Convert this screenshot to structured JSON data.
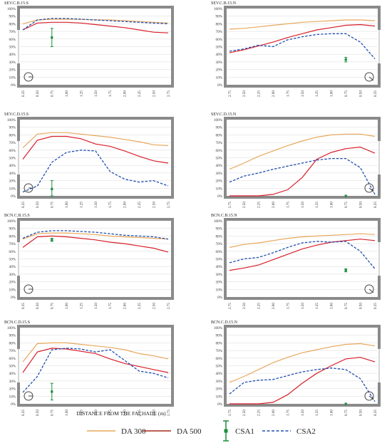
{
  "colors": {
    "da300": "#e8a85c",
    "da500": "#d81f2a",
    "da500_legend": "#a52a1f",
    "csa1": "#1a8f3c",
    "csa2": "#1f4fb0",
    "frame": "#8a8a8a",
    "grid": "#d8d8d8"
  },
  "figure": {
    "xlabel": "DISTANCE FROM THE FAÇHADE (m)"
  },
  "legend": {
    "items": [
      {
        "label": "DA 300",
        "key": "da300"
      },
      {
        "label": "DA 500",
        "key": "da500_legend"
      },
      {
        "label": "CSA1",
        "key": "csa1"
      },
      {
        "label": "CSA2",
        "key": "csa2"
      }
    ]
  },
  "chart_data": [
    {
      "type": "line",
      "title": "SEV.C.B.15.S",
      "categories": [
        "0.25",
        "0.50",
        "0.75",
        "1.00",
        "1.25",
        "1.50",
        "1.75",
        "2.00",
        "2.25",
        "2.50",
        "2.75"
      ],
      "yticks": [
        "0%",
        "10%",
        "20%",
        "30%",
        "40%",
        "50%",
        "60%",
        "70%",
        "80%",
        "90%",
        "100%"
      ],
      "ylim": [
        0,
        100
      ],
      "series": [
        {
          "name": "DA 300",
          "values": [
            80,
            85,
            86,
            86,
            86,
            85,
            85,
            84,
            83,
            82,
            81
          ]
        },
        {
          "name": "DA 500",
          "values": [
            72,
            81,
            82,
            82,
            81,
            79,
            77,
            75,
            72,
            69,
            68
          ]
        },
        {
          "name": "CSA2",
          "values": [
            72,
            85,
            87,
            87,
            86,
            85,
            84,
            83,
            82,
            81,
            80
          ]
        }
      ],
      "csa1": {
        "x": "0.75",
        "value": 62,
        "low": 50,
        "high": 74
      },
      "orientation": "S"
    },
    {
      "type": "line",
      "title": "SEV.C.B.15.N",
      "categories": [
        "2.75",
        "2.50",
        "2.25",
        "2.00",
        "1.75",
        "1.50",
        "1.25",
        "1.00",
        "0.75",
        "0.50",
        "0.25"
      ],
      "yticks": [
        "0%",
        "10%",
        "20%",
        "30%",
        "40%",
        "50%",
        "60%",
        "70%",
        "80%",
        "90%",
        "100%"
      ],
      "ylim": [
        0,
        100
      ],
      "series": [
        {
          "name": "DA 300",
          "values": [
            73,
            74,
            76,
            78,
            80,
            82,
            83,
            84,
            85,
            85,
            84
          ]
        },
        {
          "name": "DA 500",
          "values": [
            42,
            46,
            51,
            56,
            62,
            67,
            72,
            75,
            78,
            79,
            77
          ]
        },
        {
          "name": "CSA2",
          "values": [
            44,
            47,
            52,
            50,
            59,
            63,
            66,
            67,
            67,
            56,
            34
          ]
        }
      ],
      "csa1": {
        "x": "0.75",
        "value": 33,
        "low": 30,
        "high": 36
      },
      "orientation": "N"
    },
    {
      "type": "line",
      "title": "SEV.C.D.15.S",
      "categories": [
        "0.25",
        "0.50",
        "0.75",
        "1.00",
        "1.25",
        "1.50",
        "1.75",
        "2.00",
        "2.25",
        "2.50",
        "2.75"
      ],
      "yticks": [
        "0%",
        "10%",
        "20%",
        "30%",
        "40%",
        "50%",
        "60%",
        "70%",
        "80%",
        "90%",
        "100%"
      ],
      "ylim": [
        0,
        100
      ],
      "series": [
        {
          "name": "DA 300",
          "values": [
            63,
            81,
            83,
            83,
            81,
            79,
            77,
            74,
            71,
            67,
            66
          ]
        },
        {
          "name": "DA 500",
          "values": [
            48,
            73,
            78,
            78,
            75,
            68,
            65,
            59,
            52,
            46,
            43
          ]
        },
        {
          "name": "CSA2",
          "values": [
            5,
            13,
            44,
            57,
            60,
            59,
            32,
            22,
            18,
            20,
            13
          ]
        }
      ],
      "csa1": {
        "x": "0.75",
        "value": 9,
        "low": 0,
        "high": 20
      },
      "orientation": "S"
    },
    {
      "type": "line",
      "title": "SEV.C.D.15.N",
      "categories": [
        "2.75",
        "2.50",
        "2.25",
        "2.00",
        "1.75",
        "1.50",
        "1.25",
        "1.00",
        "0.75",
        "0.50",
        "0.25"
      ],
      "yticks": [
        "0%",
        "10%",
        "20%",
        "30%",
        "40%",
        "50%",
        "60%",
        "70%",
        "80%",
        "90%",
        "100%"
      ],
      "ylim": [
        0,
        100
      ],
      "series": [
        {
          "name": "DA 300",
          "values": [
            35,
            43,
            52,
            59,
            66,
            72,
            77,
            80,
            81,
            81,
            78
          ]
        },
        {
          "name": "DA 500",
          "values": [
            0,
            0,
            0,
            2,
            8,
            24,
            48,
            57,
            62,
            64,
            56
          ]
        },
        {
          "name": "CSA2",
          "values": [
            18,
            26,
            30,
            35,
            39,
            43,
            47,
            49,
            49,
            37,
            2
          ]
        }
      ],
      "csa1": {
        "x": "0.75",
        "value": 0,
        "low": 0,
        "high": 0
      },
      "orientation": "N"
    },
    {
      "type": "line",
      "title": "BCN.C.B.15.S",
      "categories": [
        "0.25",
        "0.50",
        "0.75",
        "1.00",
        "1.25",
        "1.50",
        "1.75",
        "2.00",
        "2.25",
        "2.50",
        "2.75"
      ],
      "yticks": [
        "0%",
        "10%",
        "20%",
        "30%",
        "40%",
        "50%",
        "60%",
        "70%",
        "80%",
        "90%",
        "100%"
      ],
      "ylim": [
        0,
        100
      ],
      "series": [
        {
          "name": "DA 300",
          "values": [
            76,
            83,
            84,
            84,
            83,
            82,
            80,
            79,
            78,
            77,
            76
          ]
        },
        {
          "name": "DA 500",
          "values": [
            65,
            79,
            80,
            79,
            77,
            75,
            72,
            70,
            67,
            64,
            59
          ]
        },
        {
          "name": "CSA2",
          "values": [
            77,
            85,
            87,
            87,
            86,
            85,
            83,
            81,
            80,
            79,
            76
          ]
        }
      ],
      "csa1": {
        "x": "0.75",
        "value": 75,
        "low": 73,
        "high": 77
      },
      "orientation": "S"
    },
    {
      "type": "line",
      "title": "BCN.C.B.15.N",
      "categories": [
        "2.75",
        "2.50",
        "2.25",
        "2.00",
        "1.75",
        "1.50",
        "1.25",
        "1.00",
        "0.75",
        "0.50",
        "0.25"
      ],
      "yticks": [
        "0%",
        "10%",
        "20%",
        "30%",
        "40%",
        "50%",
        "60%",
        "70%",
        "80%",
        "90%",
        "100%"
      ],
      "ylim": [
        0,
        100
      ],
      "series": [
        {
          "name": "DA 300",
          "values": [
            65,
            69,
            71,
            74,
            77,
            79,
            80,
            81,
            82,
            83,
            82
          ]
        },
        {
          "name": "DA 500",
          "values": [
            35,
            38,
            42,
            49,
            56,
            63,
            68,
            72,
            74,
            76,
            74
          ]
        },
        {
          "name": "CSA2",
          "values": [
            45,
            50,
            52,
            58,
            65,
            71,
            73,
            72,
            73,
            60,
            37
          ]
        }
      ],
      "csa1": {
        "x": "0.75",
        "value": 35,
        "low": 33,
        "high": 37
      },
      "orientation": "N"
    },
    {
      "type": "line",
      "title": "BCN.C.D.15.S",
      "categories": [
        "0.25",
        "0.50",
        "0.75",
        "1.00",
        "1.25",
        "1.50",
        "1.75",
        "2.00",
        "2.25",
        "2.50",
        "2.75"
      ],
      "yticks": [
        "0%",
        "10%",
        "20%",
        "30%",
        "40%",
        "50%",
        "60%",
        "70%",
        "80%",
        "90%",
        "100%"
      ],
      "ylim": [
        0,
        100
      ],
      "series": [
        {
          "name": "DA 300",
          "values": [
            55,
            79,
            80,
            80,
            78,
            76,
            74,
            71,
            66,
            63,
            59
          ]
        },
        {
          "name": "DA 500",
          "values": [
            41,
            68,
            73,
            72,
            69,
            66,
            59,
            53,
            49,
            45,
            41
          ]
        },
        {
          "name": "CSA2",
          "values": [
            15,
            36,
            71,
            73,
            72,
            68,
            71,
            57,
            43,
            40,
            34
          ]
        }
      ],
      "csa1": {
        "x": "0.75",
        "value": 16,
        "low": 5,
        "high": 27
      },
      "orientation": "S"
    },
    {
      "type": "line",
      "title": "BCN.C.D.15.N",
      "categories": [
        "2.75",
        "2.50",
        "2.25",
        "2.00",
        "1.75",
        "1.50",
        "1.25",
        "1.00",
        "0.75",
        "0.50",
        "0.25"
      ],
      "yticks": [
        "0%",
        "10%",
        "20%",
        "30%",
        "40%",
        "50%",
        "60%",
        "70%",
        "80%",
        "90%",
        "100%"
      ],
      "ylim": [
        0,
        100
      ],
      "series": [
        {
          "name": "DA 300",
          "values": [
            28,
            36,
            45,
            54,
            61,
            67,
            71,
            75,
            78,
            79,
            76
          ]
        },
        {
          "name": "DA 500",
          "values": [
            0,
            0,
            0,
            2,
            12,
            27,
            40,
            50,
            59,
            61,
            55
          ]
        },
        {
          "name": "CSA2",
          "values": [
            13,
            28,
            31,
            32,
            37,
            42,
            45,
            47,
            45,
            33,
            3
          ]
        }
      ],
      "csa1": {
        "x": "0.75",
        "value": 0,
        "low": 0,
        "high": 0
      },
      "orientation": "N"
    }
  ]
}
